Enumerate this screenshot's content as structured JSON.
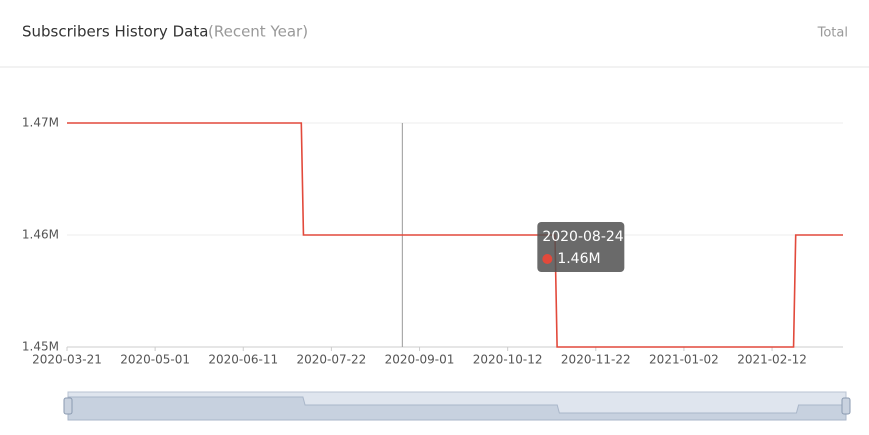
{
  "chart_data": {
    "type": "line",
    "title": "Subscribers History Data",
    "subtitle": "(Recent Year)",
    "toggle": "Total",
    "x": [
      "2020-03-21",
      "2020-07-08",
      "2020-07-09",
      "2020-11-03",
      "2020-11-04",
      "2021-02-22",
      "2021-02-23",
      "2021-03-17"
    ],
    "series": [
      {
        "name": "Subscribers",
        "color": "#e2493b",
        "values": [
          1470000,
          1470000,
          1460000,
          1460000,
          1450000,
          1450000,
          1460000,
          1460000
        ]
      }
    ],
    "xlim": [
      "2020-03-21",
      "2021-03-17"
    ],
    "xticks": [
      "2020-03-21",
      "2020-05-01",
      "2020-06-11",
      "2020-07-22",
      "2020-09-01",
      "2020-10-12",
      "2020-11-22",
      "2021-01-02",
      "2021-02-12"
    ],
    "ylim": [
      1450000,
      1470000
    ],
    "yticks": [
      {
        "value": 1450000,
        "label": "1.45M"
      },
      {
        "value": 1460000,
        "label": "1.46M"
      },
      {
        "value": 1470000,
        "label": "1.47M"
      }
    ],
    "grid": true,
    "tooltip": {
      "x": "2020-08-24",
      "value": 1460000,
      "label": "1.46M"
    }
  }
}
